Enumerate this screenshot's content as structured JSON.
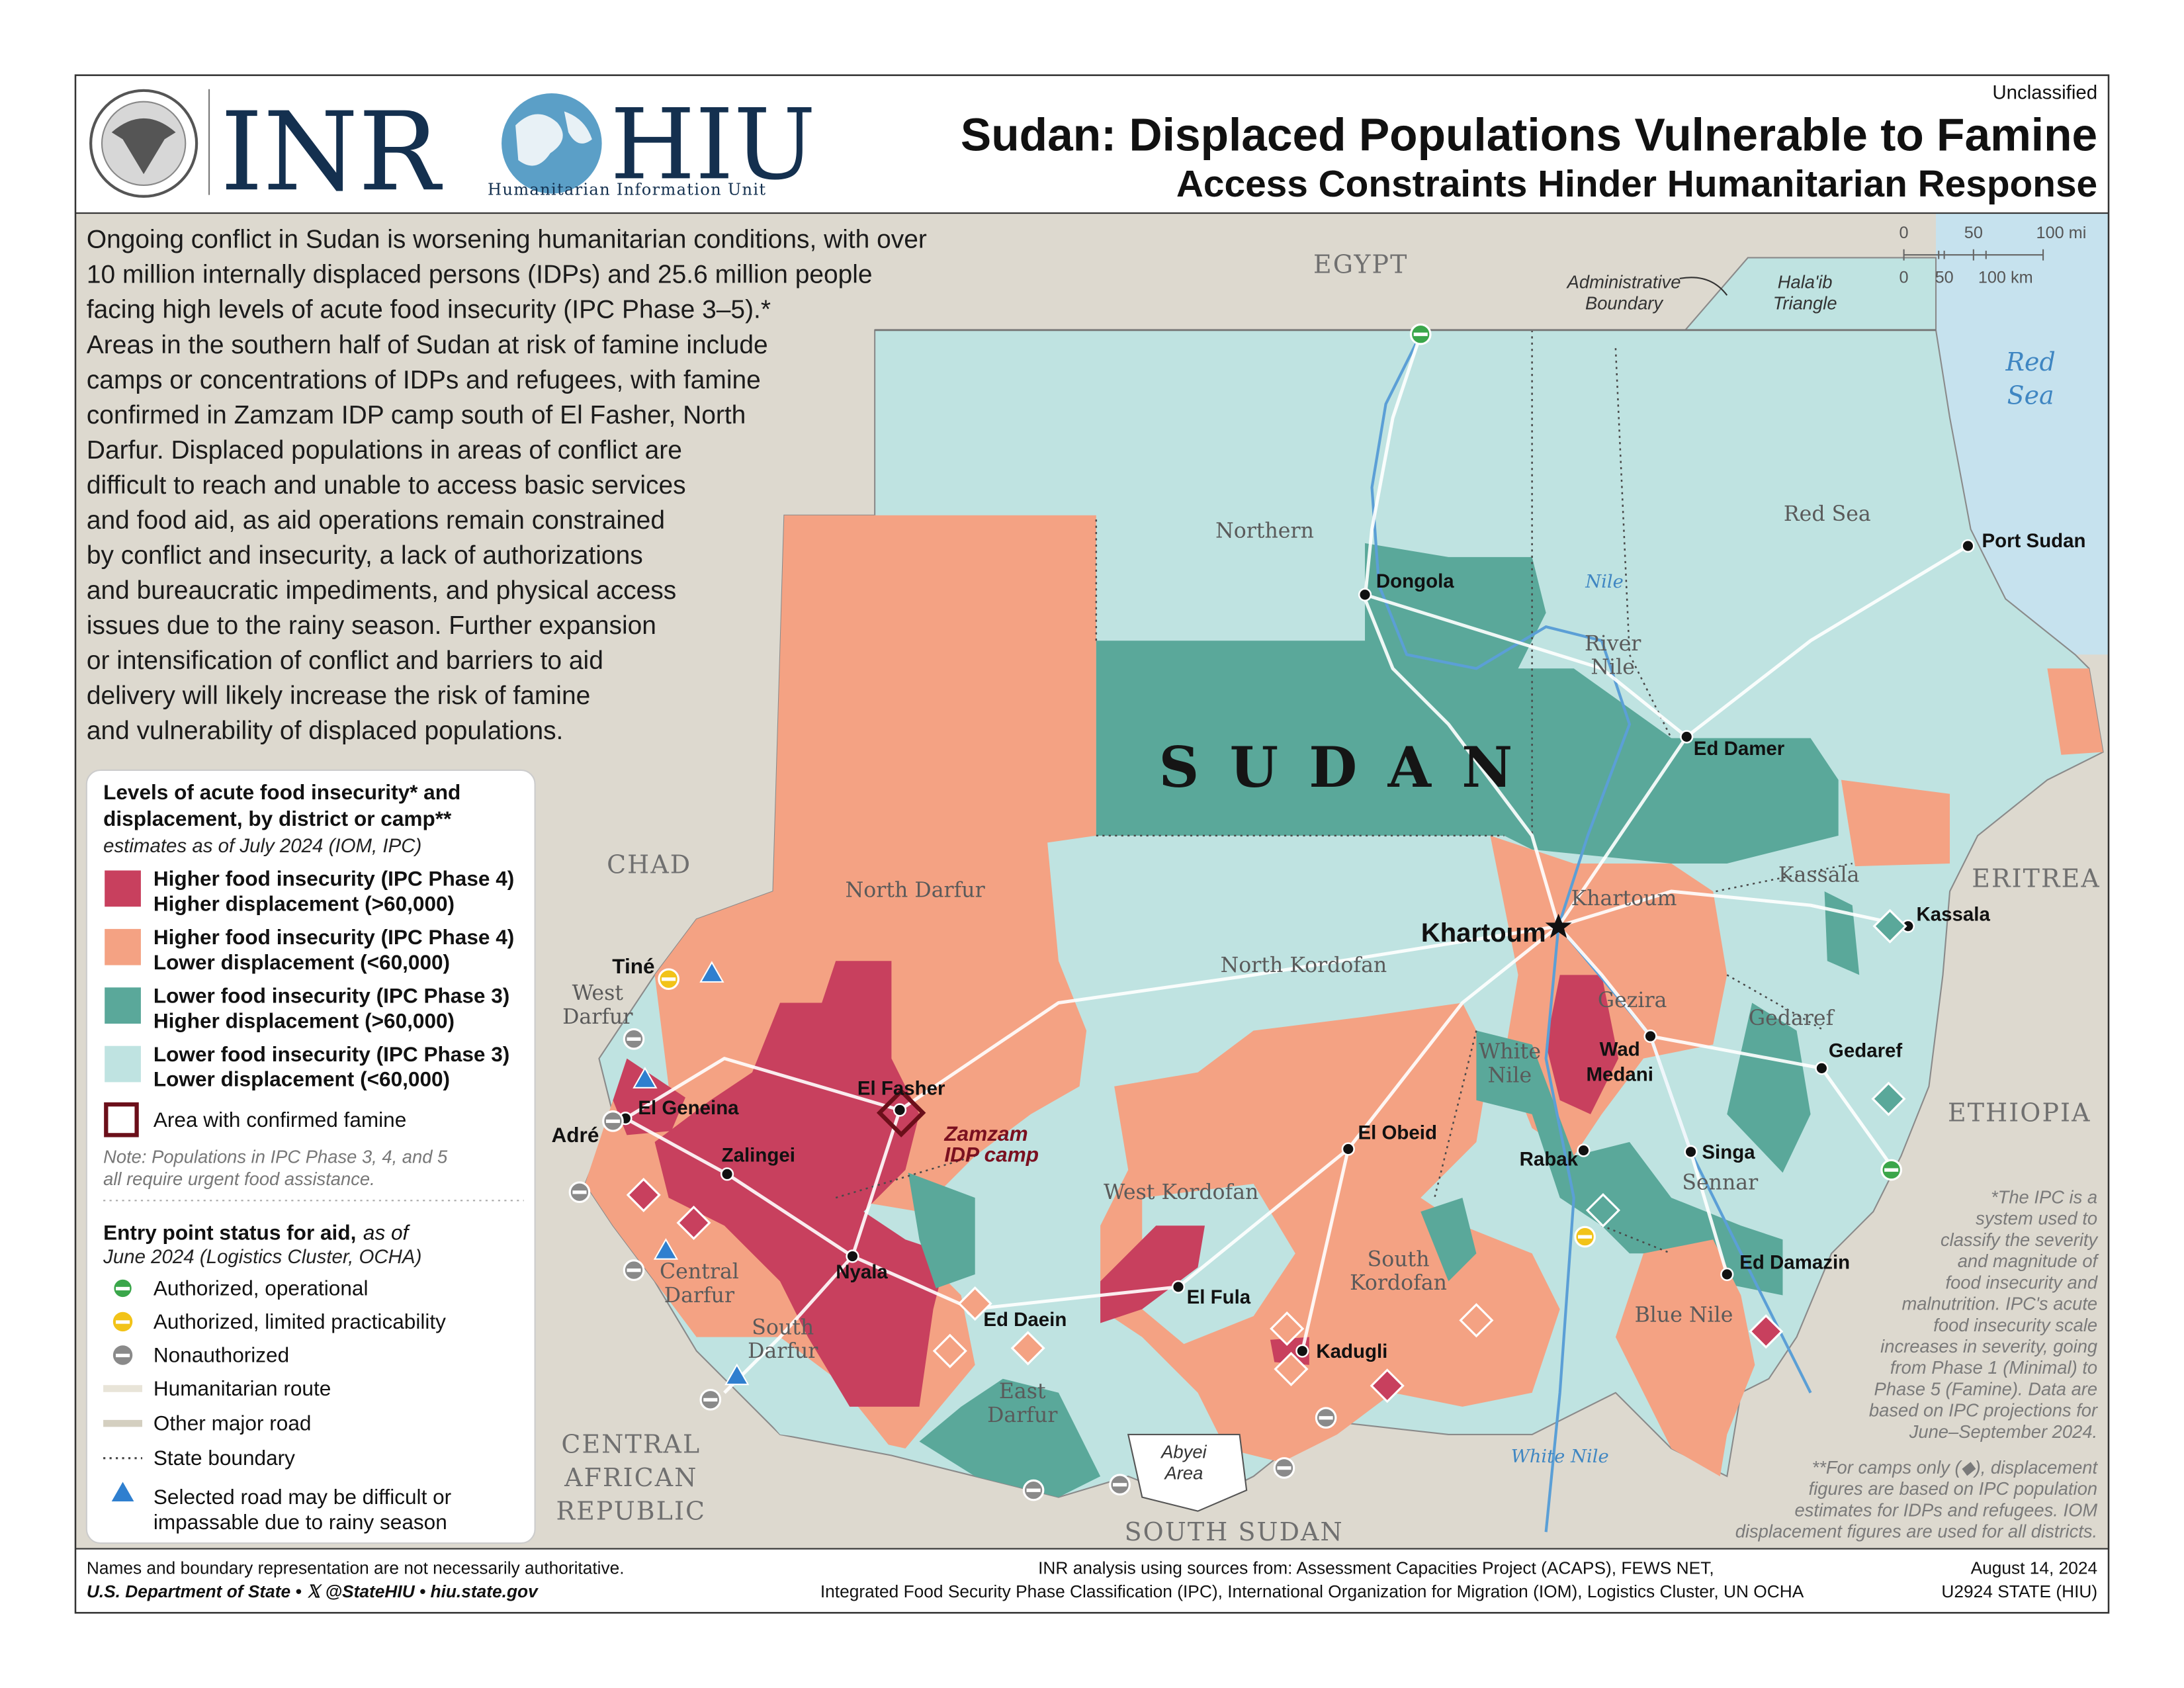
{
  "header": {
    "classification": "Unclassified",
    "title": "Sudan: Displaced Populations Vulnerable to Famine",
    "subtitle": "Access Constraints Hinder Humanitarian Response",
    "logo_inr": "INR",
    "logo_hiu": "HIU",
    "logo_hiu_sub": "Humanitarian Information Unit"
  },
  "intro": [
    "Ongoing conflict in Sudan is worsening humanitarian conditions, with over",
    "10 million internally displaced persons (IDPs) and 25.6 million people",
    "facing high levels of acute food insecurity (IPC Phase 3–5).*",
    "Areas in the southern half of Sudan at risk of famine include",
    "camps or concentrations of IDPs and refugees, with famine",
    "confirmed in Zamzam IDP camp south of El Fasher, North",
    "Darfur. Displaced populations in areas of conflict are",
    "difficult to reach and unable to access basic services",
    "and food aid, as aid operations remain constrained",
    "by conflict and insecurity, a lack of authorizations",
    "and bureaucratic impediments, and physical access",
    "issues due to the rainy season. Further expansion",
    "or intensification of conflict and barriers to aid",
    "delivery will likely increase the risk of famine",
    "and vulnerability of displaced populations."
  ],
  "legend": {
    "title": [
      "Levels of acute food insecurity* and",
      "displacement, by district or camp**"
    ],
    "subtitle": "estimates as of July 2024 (IOM, IPC)",
    "categories": [
      [
        "Higher food insecurity (IPC Phase 4)",
        "Higher displacement (>60,000)"
      ],
      [
        "Higher food insecurity (IPC Phase 4)",
        "Lower displacement (<60,000)"
      ],
      [
        "Lower food insecurity (IPC Phase 3)",
        "Higher displacement (>60,000)"
      ],
      [
        "Lower food insecurity (IPC Phase 3)",
        "Lower displacement (<60,000)"
      ]
    ],
    "famine": "Area with confirmed famine",
    "note": [
      "Note: Populations in IPC Phase 3, 4, and 5",
      "all require urgent food assistance."
    ],
    "entry_title": "Entry point status for aid,",
    "entry_title_tail": "as of",
    "entry_subtitle": "June 2024 (Logistics Cluster, OCHA)",
    "entries": [
      "Authorized, operational",
      "Authorized, limited practicability",
      "Nonauthorized",
      "Humanitarian route",
      "Other major road",
      "State boundary",
      [
        "Selected road may be difficult or",
        "impassable due to rainy season"
      ]
    ]
  },
  "map": {
    "countries": [
      "EGYPT",
      "CHAD",
      "ERITREA",
      "ETHIOPIA",
      [
        "CENTRAL",
        "AFRICAN",
        "REPUBLIC"
      ],
      "SOUTH SUDAN"
    ],
    "country_main": "SUDAN",
    "water": [
      [
        "Red",
        "Sea"
      ]
    ],
    "rivers": [
      "Nile",
      "White Nile"
    ],
    "states": [
      "Northern",
      "Red Sea",
      [
        "River",
        "Nile"
      ],
      "North Darfur",
      "North Kordofan",
      "Khartoum",
      "Kassala",
      "Gezira",
      "Gedaref",
      [
        "White",
        "Nile"
      ],
      "Sennar",
      "West Kordofan",
      [
        "South",
        "Kordofan"
      ],
      [
        "Central",
        "Darfur"
      ],
      [
        "South",
        "Darfur"
      ],
      [
        "East",
        "Darfur"
      ],
      "Blue Nile",
      [
        "West",
        "Darfur"
      ]
    ],
    "cities": [
      "Dongola",
      "Port Sudan",
      "Ed Damer",
      "Khartoum",
      "Kassala",
      [
        "Wad",
        "Medani"
      ],
      "Gedaref",
      "El Fasher",
      "El Geneina",
      "Adré",
      "Tiné",
      "Zalingei",
      "El Obeid",
      "Rabak",
      "Singa",
      "Nyala",
      "Ed Daein",
      "El Fula",
      "Kadugli",
      "Ed Damazin"
    ],
    "annotations": [
      [
        "Zamzam",
        "IDP camp"
      ],
      [
        "Administrative",
        "Boundary"
      ],
      [
        "Hala'ib",
        "Triangle"
      ],
      [
        "Abyei",
        "Area"
      ]
    ],
    "scale_mi": [
      "0",
      "50",
      "100 mi"
    ],
    "scale_km": [
      "0",
      "50",
      "100 km"
    ]
  },
  "footnotes": {
    "ipc": [
      "*The IPC is a",
      "system used to",
      "classify the severity",
      "and magnitude of",
      "food insecurity and",
      "malnutrition. IPC's acute",
      "food insecurity scale",
      "increases in severity, going",
      "from Phase 1 (Minimal) to",
      "Phase 5 (Famine). Data are",
      "based on IPC projections for",
      "June–September 2024."
    ],
    "camps": [
      "**For camps only (◆), displacement",
      "figures are based on IPC population",
      "estimates for IDPs and refugees. IOM",
      "displacement figures are used for all districts."
    ]
  },
  "footer": {
    "disclaimer": "Names and boundary representation are not necessarily authoritative.",
    "agency": "U.S. Department of State • 𝕏 @StateHIU • hiu.state.gov",
    "sources": [
      "INR analysis using sources from: Assessment Capacities Project (ACAPS), FEWS NET,",
      "Integrated Food Security Phase Classification (IPC), International Organization for Migration (IOM), Logistics Cluster, UN OCHA"
    ],
    "date": "August 14, 2024",
    "code": "U2924 STATE (HIU)"
  }
}
